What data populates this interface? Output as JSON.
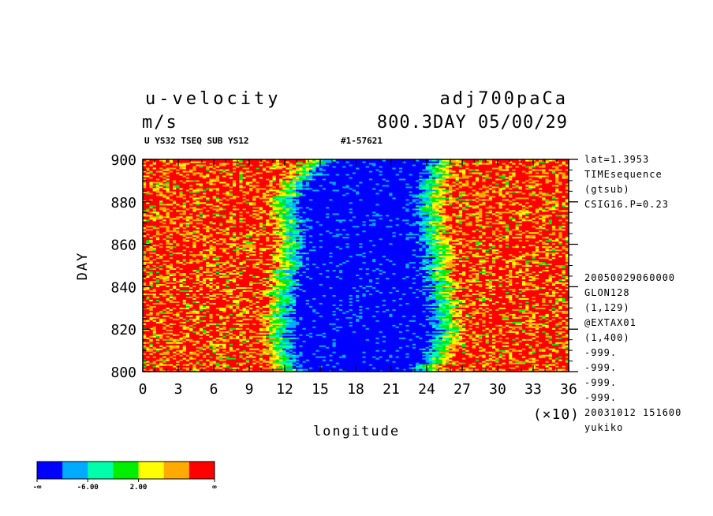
{
  "header": {
    "title_left": "u-velocity",
    "units": "m/s",
    "title_right": "adj700paCa",
    "subtitle_right": "800.3DAY 05/00/29",
    "info_left": "U YS32 TSEQ SUB YS12",
    "info_right": "#1-57621"
  },
  "side_info": {
    "top": [
      "lat=1.3953",
      "TIMEsequence",
      "(gtsub)",
      "CSIG16.P=0.23"
    ],
    "bottom": [
      "20050029060000",
      "GLON128",
      "(1,129)",
      "@EXTAX01",
      "(1,400)",
      "-999.",
      "-999.",
      "-999.",
      "-999.",
      "20031012 151600",
      "yukiko"
    ]
  },
  "colorbar": {
    "colors": [
      "#0000ff",
      "#00aaff",
      "#00ffaa",
      "#00ee00",
      "#ffff00",
      "#ffaa00",
      "#ff0000"
    ],
    "labels": [
      "-∞",
      "-6.00",
      "2.00",
      "∞"
    ]
  },
  "chart_data": {
    "type": "heatmap",
    "title": "u-velocity",
    "xlabel": "longitude",
    "ylabel": "DAY",
    "x_multiplier_label": "(×10)",
    "xticks": [
      0,
      3,
      6,
      9,
      12,
      15,
      18,
      21,
      24,
      27,
      30,
      33,
      36
    ],
    "yticks": [
      800,
      820,
      840,
      860,
      880,
      900
    ],
    "xlim": [
      0,
      36
    ],
    "ylim": [
      800,
      900
    ],
    "pattern": {
      "easterly_band_left_edge_by_day": [
        [
          800,
          12.5
        ],
        [
          820,
          11.5
        ],
        [
          840,
          12.0
        ],
        [
          860,
          13.0
        ],
        [
          880,
          12.0
        ],
        [
          900,
          15.0
        ]
      ],
      "easterly_band_right_edge_by_day": [
        [
          800,
          24.0
        ],
        [
          820,
          25.5
        ],
        [
          840,
          25.0
        ],
        [
          860,
          24.5
        ],
        [
          880,
          24.0
        ],
        [
          900,
          25.0
        ]
      ],
      "westerly_regions": [
        "0–9 (×10) longitude",
        "28–36 (×10) longitude"
      ]
    }
  }
}
